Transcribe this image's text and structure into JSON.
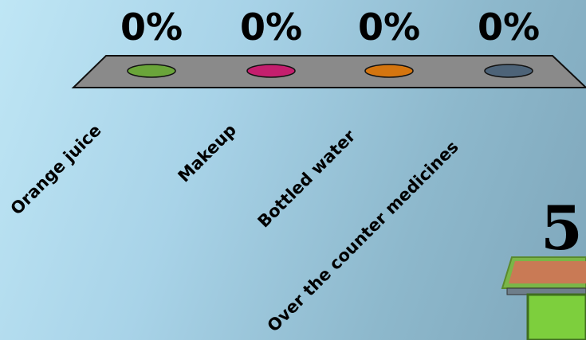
{
  "chart_data": {
    "type": "bar",
    "categories": [
      "Orange juice",
      "Makeup",
      "Bottled water",
      "Over the counter medicines"
    ],
    "values": [
      0,
      0,
      0,
      0
    ],
    "value_labels": [
      "0%",
      "0%",
      "0%",
      "0%"
    ],
    "series_colors": [
      "#6aa53a",
      "#c41f6e",
      "#d4750f",
      "#4d6378"
    ],
    "ylim": [
      0,
      100
    ]
  },
  "countdown": {
    "value": "5"
  },
  "colors": {
    "platform": "#8a8a8a",
    "timer_lid": "#c97a55",
    "timer_body": "#7dcf3d"
  }
}
